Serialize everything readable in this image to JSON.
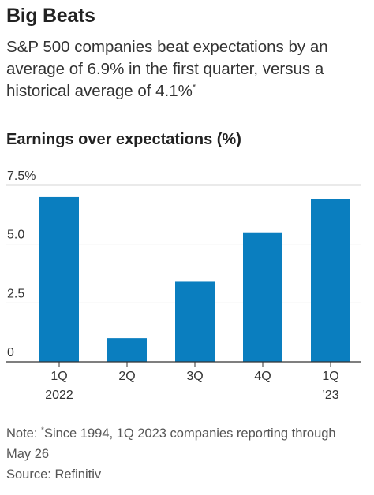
{
  "header": {
    "title": "Big Beats",
    "subtitle_main": "S&P 500 companies beat expectations by an average of 6.9% in the first quarter, versus a historical average of 4.1%",
    "subtitle_mark": "*"
  },
  "chart_data": {
    "type": "bar",
    "title": "Earnings over expectations (%)",
    "categories": [
      [
        "1Q",
        "2022"
      ],
      [
        "2Q",
        ""
      ],
      [
        "3Q",
        ""
      ],
      [
        "4Q",
        ""
      ],
      [
        "1Q",
        "’23"
      ]
    ],
    "values": [
      7.0,
      1.0,
      3.4,
      5.5,
      6.9
    ],
    "ylim": [
      0,
      7.5
    ],
    "yticks": [
      {
        "value": 0,
        "label": "0"
      },
      {
        "value": 2.5,
        "label": "2.5"
      },
      {
        "value": 5.0,
        "label": "5.0"
      },
      {
        "value": 7.5,
        "label": "7.5%"
      }
    ],
    "grid": true,
    "bar_color": "#0a7ebf"
  },
  "footer": {
    "note_prefix": "Note: ",
    "note_mark": "*",
    "note_text": "Since 1994, 1Q 2023 companies reporting through May 26",
    "source": "Source: Refinitiv"
  }
}
